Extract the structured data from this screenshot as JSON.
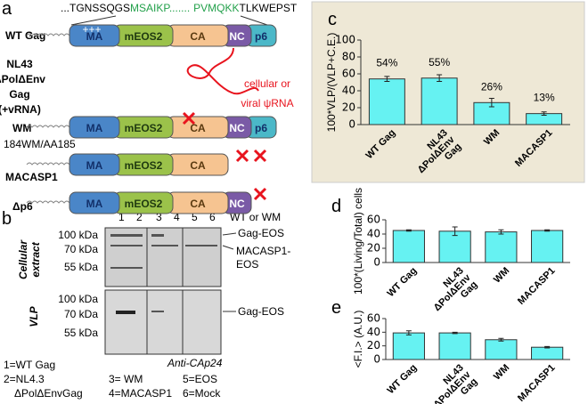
{
  "panel_labels": [
    "a",
    "b",
    "c",
    "d",
    "e"
  ],
  "sequence": {
    "start": "...TGNSSQGS",
    "green1": "MSAIKP",
    "dots": ".......",
    "green2": "PVMQKK",
    "end": "TLKWEPST"
  },
  "constructs": {
    "wt": "WT Gag",
    "nl43": [
      "NL43",
      "ΔPolΔEnv",
      "Gag",
      "(+vRNA)"
    ],
    "wm": "WM",
    "wm_sub": "184WM/AA185",
    "macasp1": "MACASP1",
    "dp6": "Δp6"
  },
  "domains": {
    "ma": "MA",
    "meos2": "mEOS2",
    "ca": "CA",
    "nc": "NC",
    "p6": "p6",
    "charge": "+++"
  },
  "rna_label": [
    "cellular or",
    "viral ψRNA"
  ],
  "gel": {
    "kda": [
      "100 kDa",
      "70 kDa",
      "55 kDa"
    ],
    "lanes": [
      "1",
      "2",
      "3",
      "4",
      "5",
      "6"
    ],
    "top_right": "WT or WM",
    "bands": [
      "Gag-EOS",
      "MACASP1-",
      "EOS"
    ],
    "vlp_band": "Gag-EOS",
    "rows": [
      "Cellular",
      "extract",
      "VLP"
    ],
    "antibody": "Anti-CAp24",
    "legend": [
      "1=WT Gag",
      "2=NL4.3",
      "ΔPolΔEnvGag",
      "3= WM",
      "4=MACASP1",
      "5=EOS",
      "6=Mock"
    ]
  },
  "chart_data": [
    {
      "type": "bar",
      "ylabel": "100*VLP/(VLP+C.E.)",
      "categories": [
        "WT Gag",
        "NL43\nΔPolΔEnv\nGag",
        "WM",
        "MACASP1"
      ],
      "values": [
        54,
        55,
        26,
        13
      ],
      "errors": [
        3,
        4,
        5,
        2
      ],
      "value_labels": [
        "54%",
        "55%",
        "26%",
        "13%"
      ],
      "color": "#66f2f2",
      "ylim": [
        0,
        100
      ],
      "yticks": [
        0,
        20,
        40,
        60,
        80,
        100
      ]
    },
    {
      "type": "bar",
      "ylabel": "100*(Living/Total) cells",
      "categories": [
        "WT Gag",
        "NL43\nΔPolΔEnv\nGag",
        "WM",
        "MACASP1"
      ],
      "values": [
        45,
        44,
        43,
        45
      ],
      "errors": [
        1,
        6,
        3,
        1
      ],
      "color": "#66f2f2",
      "ylim": [
        0,
        60
      ],
      "yticks": [
        0,
        20,
        40,
        60
      ]
    },
    {
      "type": "bar",
      "ylabel": "<F.I.> (A.U.)",
      "categories": [
        "WT Gag",
        "NL43\nΔPolΔEnv\nGag",
        "WM",
        "MACASP1"
      ],
      "values": [
        39,
        39,
        29,
        18
      ],
      "errors": [
        3,
        1,
        2,
        1
      ],
      "color": "#66f2f2",
      "ylim": [
        0,
        60
      ],
      "yticks": [
        0,
        20,
        40,
        60
      ]
    }
  ]
}
